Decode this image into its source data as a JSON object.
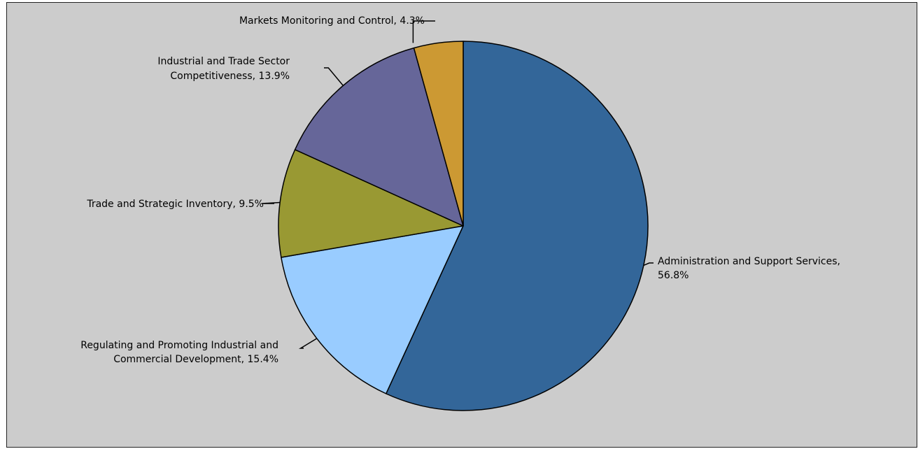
{
  "chart_data": {
    "type": "pie",
    "title": "",
    "slices": [
      {
        "name": "Administration and Support Services",
        "value": 56.8,
        "lines": [
          "Administration and Support Services,",
          "56.8%"
        ],
        "color": "#336699"
      },
      {
        "name": "Regulating and Promoting Industrial and Commercial Development",
        "value": 15.4,
        "lines": [
          "Regulating and Promoting Industrial and",
          "Commercial Development, 15.4%"
        ],
        "color": "#99ccff"
      },
      {
        "name": "Trade and Strategic Inventory",
        "value": 9.5,
        "lines": [
          "Trade and Strategic Inventory, 9.5%"
        ],
        "color": "#999933"
      },
      {
        "name": "Industrial and Trade Sector Competitiveness",
        "value": 13.9,
        "lines": [
          "Industrial and Trade Sector",
          "Competitiveness, 13.9%"
        ],
        "color": "#666699"
      },
      {
        "name": "Markets Monitoring and Control",
        "value": 4.3,
        "lines": [
          "Markets Monitoring and Control, 4.3%"
        ],
        "color": "#cc9933"
      }
    ],
    "start_angle": "12 o'clock",
    "direction": "clockwise",
    "legend": "none",
    "background_color": "#cccccc"
  }
}
